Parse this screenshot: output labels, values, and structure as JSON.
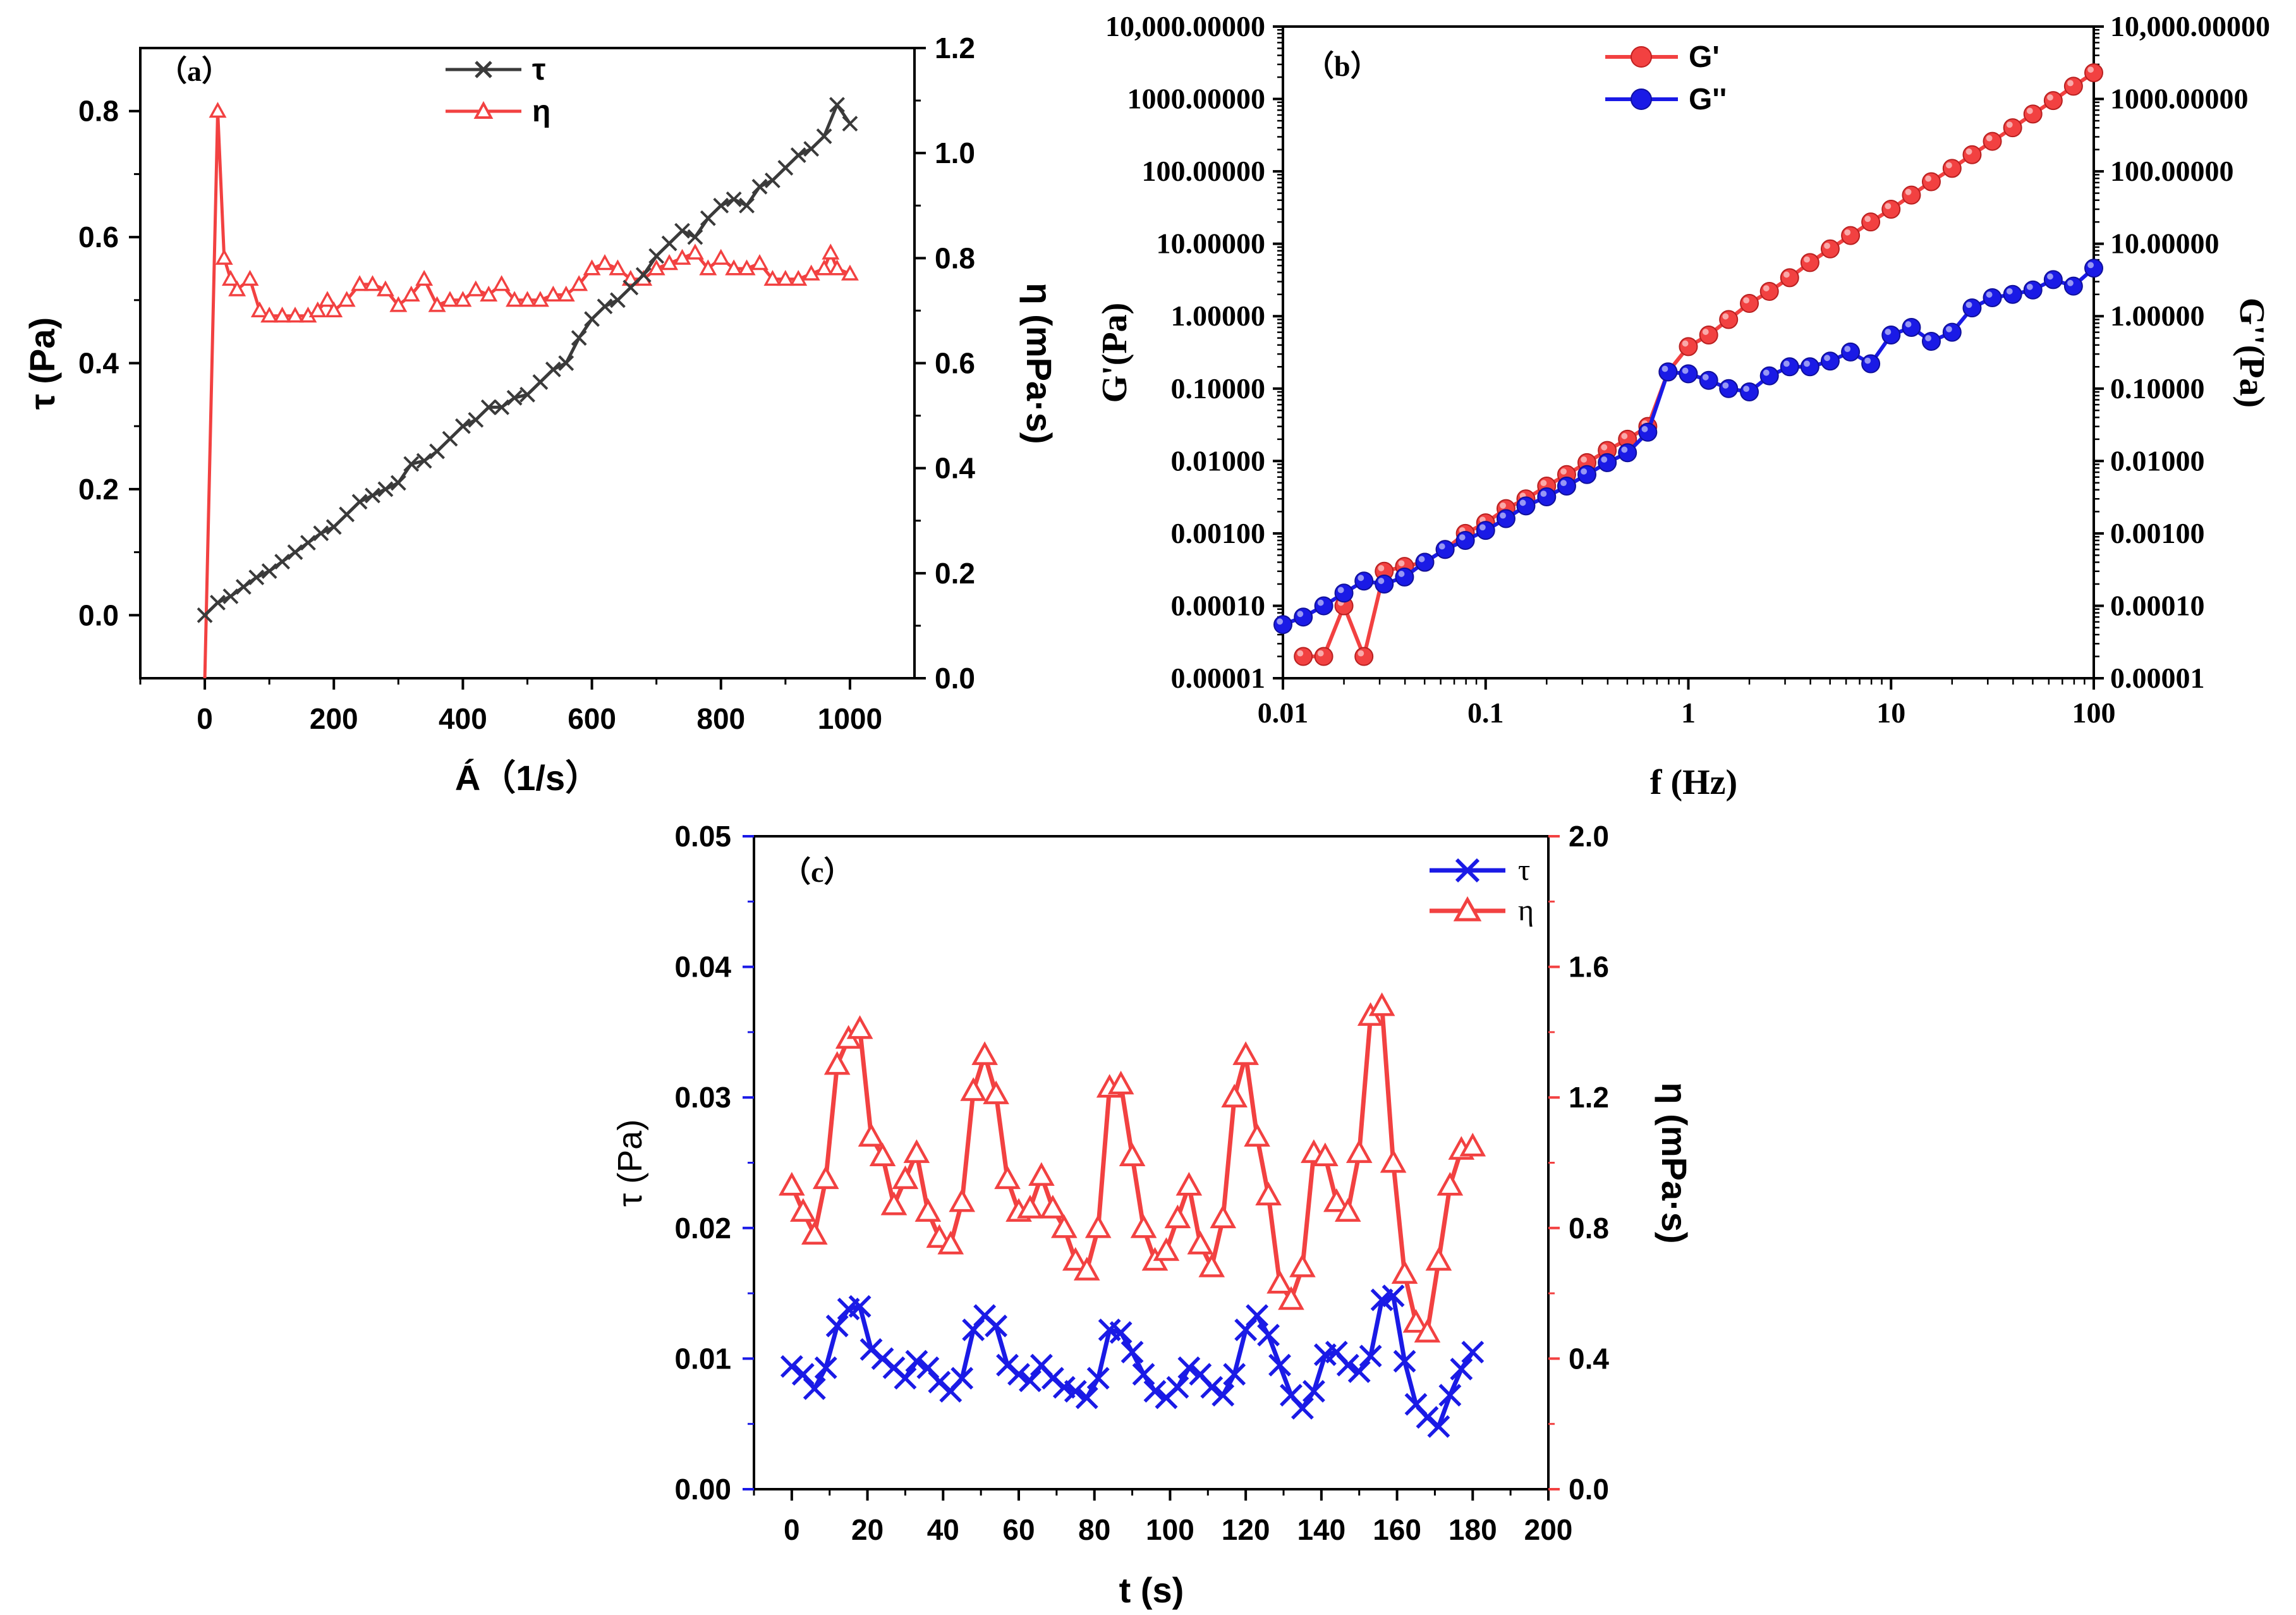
{
  "colors": {
    "black": "#3a3a3a",
    "red": "#f24141",
    "blue": "#1a1ae6",
    "axis": "#000000"
  },
  "chart_data": [
    {
      "panel_label": "（a）",
      "type": "line",
      "xlabel": "Á（1/s）",
      "ylabel_left": "τ (Pa)",
      "ylabel_right": "η (mPa·s)",
      "xlim": [
        -100,
        1100
      ],
      "ylim_left": [
        -0.1,
        0.9
      ],
      "ylim_right": [
        0,
        1.2
      ],
      "xticks": [
        "0",
        "200",
        "400",
        "600",
        "800",
        "1000"
      ],
      "yticks_left": [
        "0.0",
        "0.2",
        "0.4",
        "0.6",
        "0.8"
      ],
      "yticks_right": [
        "0.0",
        "0.2",
        "0.4",
        "0.6",
        "0.8",
        "1.0",
        "1.2"
      ],
      "legend": [
        "τ",
        "η"
      ],
      "series": [
        {
          "name": "τ",
          "axis": "left",
          "marker": "x",
          "x": [
            0,
            20,
            40,
            60,
            80,
            100,
            120,
            140,
            160,
            180,
            200,
            220,
            240,
            260,
            280,
            300,
            320,
            340,
            360,
            380,
            400,
            420,
            440,
            460,
            480,
            500,
            520,
            540,
            560,
            580,
            600,
            620,
            640,
            660,
            680,
            700,
            720,
            740,
            760,
            780,
            800,
            820,
            840,
            860,
            880,
            900,
            920,
            940,
            960,
            980,
            1000
          ],
          "y": [
            0.0,
            0.02,
            0.03,
            0.045,
            0.06,
            0.07,
            0.085,
            0.1,
            0.115,
            0.13,
            0.14,
            0.16,
            0.18,
            0.19,
            0.2,
            0.21,
            0.24,
            0.245,
            0.26,
            0.28,
            0.3,
            0.31,
            0.33,
            0.33,
            0.345,
            0.35,
            0.37,
            0.39,
            0.4,
            0.44,
            0.47,
            0.49,
            0.5,
            0.52,
            0.54,
            0.57,
            0.59,
            0.61,
            0.6,
            0.63,
            0.65,
            0.66,
            0.65,
            0.68,
            0.69,
            0.71,
            0.73,
            0.74,
            0.76,
            0.81,
            0.78
          ]
        },
        {
          "name": "η",
          "axis": "right",
          "marker": "triangle",
          "x": [
            0,
            20,
            30,
            40,
            50,
            70,
            85,
            100,
            120,
            140,
            160,
            175,
            190,
            200,
            220,
            240,
            260,
            280,
            300,
            320,
            340,
            360,
            380,
            400,
            420,
            440,
            460,
            480,
            500,
            520,
            540,
            560,
            580,
            600,
            620,
            640,
            660,
            680,
            700,
            720,
            740,
            760,
            780,
            800,
            820,
            840,
            860,
            880,
            900,
            920,
            940,
            960,
            970,
            980,
            1000
          ],
          "y": [
            0.0,
            1.08,
            0.8,
            0.76,
            0.74,
            0.76,
            0.7,
            0.69,
            0.69,
            0.69,
            0.69,
            0.7,
            0.72,
            0.7,
            0.72,
            0.75,
            0.75,
            0.74,
            0.71,
            0.73,
            0.76,
            0.71,
            0.72,
            0.72,
            0.74,
            0.73,
            0.75,
            0.72,
            0.72,
            0.72,
            0.73,
            0.73,
            0.75,
            0.78,
            0.79,
            0.78,
            0.76,
            0.76,
            0.78,
            0.79,
            0.8,
            0.81,
            0.78,
            0.8,
            0.78,
            0.78,
            0.79,
            0.76,
            0.76,
            0.76,
            0.77,
            0.78,
            0.81,
            0.78,
            0.77
          ]
        }
      ]
    },
    {
      "panel_label": "（b）",
      "type": "line",
      "xscale": "log",
      "yscale": "log",
      "xlabel": "f (Hz)",
      "ylabel_left": "G'(Pa)",
      "ylabel_right": "G''(Pa)",
      "xlim": [
        0.01,
        100
      ],
      "ylim": [
        1e-05,
        10000
      ],
      "xticks": [
        "0.01",
        "0.1",
        "1",
        "10",
        "100"
      ],
      "yticks_left": [
        "0.00001",
        "0.00010",
        "0.00100",
        "0.01000",
        "0.10000",
        "1.00000",
        "10.00000",
        "100.00000",
        "1000.00000",
        "10,000.00000"
      ],
      "yticks_right": [
        "0.00001",
        "0.00010",
        "0.00100",
        "0.01000",
        "0.10000",
        "1.00000",
        "10.00000",
        "100.00000",
        "1000.00000",
        "10,000.00000"
      ],
      "legend": [
        "G'",
        "G''"
      ],
      "series": [
        {
          "name": "G'",
          "marker": "sphere",
          "x": [
            0.0126,
            0.0159,
            0.02,
            0.0251,
            0.0316,
            0.0398,
            0.0501,
            0.0631,
            0.0794,
            0.1,
            0.126,
            0.158,
            0.2,
            0.251,
            0.316,
            0.398,
            0.501,
            0.631,
            0.794,
            1.0,
            1.26,
            1.58,
            2.0,
            2.51,
            3.16,
            3.98,
            5.01,
            6.31,
            7.94,
            10.0,
            12.6,
            15.8,
            20.0,
            25.1,
            31.6,
            39.8,
            50.1,
            63.1,
            79.4,
            100
          ],
          "y": [
            2e-05,
            2e-05,
            0.0001,
            2e-05,
            0.0003,
            0.00035,
            0.0004,
            0.0006,
            0.001,
            0.0014,
            0.0022,
            0.003,
            0.0045,
            0.0065,
            0.0095,
            0.014,
            0.02,
            0.03,
            0.17,
            0.38,
            0.55,
            0.9,
            1.5,
            2.2,
            3.4,
            5.5,
            8.5,
            13,
            20,
            30,
            47,
            72,
            110,
            170,
            260,
            400,
            620,
            950,
            1500,
            2300
          ]
        },
        {
          "name": "G''",
          "marker": "sphere",
          "x": [
            0.01,
            0.0126,
            0.0159,
            0.02,
            0.0251,
            0.0316,
            0.0398,
            0.0501,
            0.0631,
            0.0794,
            0.1,
            0.126,
            0.158,
            0.2,
            0.251,
            0.316,
            0.398,
            0.501,
            0.631,
            0.794,
            1.0,
            1.26,
            1.58,
            2.0,
            2.51,
            3.16,
            3.98,
            5.01,
            6.31,
            7.94,
            10.0,
            12.6,
            15.8,
            20.0,
            25.1,
            31.6,
            39.8,
            50.1,
            63.1,
            79.4,
            100
          ],
          "y": [
            5.5e-05,
            7e-05,
            0.0001,
            0.00015,
            0.00022,
            0.0002,
            0.00025,
            0.0004,
            0.0006,
            0.0008,
            0.0011,
            0.0016,
            0.0024,
            0.0032,
            0.0045,
            0.0065,
            0.0095,
            0.013,
            0.025,
            0.17,
            0.16,
            0.13,
            0.1,
            0.09,
            0.15,
            0.2,
            0.2,
            0.24,
            0.32,
            0.22,
            0.55,
            0.7,
            0.45,
            0.6,
            1.3,
            1.8,
            2.0,
            2.3,
            3.2,
            2.6,
            4.6
          ]
        }
      ]
    },
    {
      "panel_label": "（c）",
      "type": "line",
      "xlabel": "t (s)",
      "ylabel_left": "τ (Pa)",
      "ylabel_right": "η (mPa·s)",
      "xlim": [
        -10,
        200
      ],
      "ylim_left": [
        0,
        0.05
      ],
      "ylim_right": [
        0,
        2.0
      ],
      "xticks": [
        "0",
        "20",
        "40",
        "60",
        "80",
        "100",
        "120",
        "140",
        "160",
        "180",
        "200"
      ],
      "yticks_left": [
        "0.00",
        "0.01",
        "0.02",
        "0.03",
        "0.04",
        "0.05"
      ],
      "yticks_right": [
        "0.0",
        "0.4",
        "0.8",
        "1.2",
        "1.6",
        "2.0"
      ],
      "legend": [
        "τ",
        "η"
      ],
      "series": [
        {
          "name": "τ",
          "axis": "left",
          "marker": "x",
          "x": [
            0,
            3,
            6,
            9,
            12,
            15,
            18,
            21,
            24,
            27,
            30,
            33,
            36,
            39,
            42,
            45,
            48,
            51,
            54,
            57,
            60,
            63,
            66,
            69,
            72,
            75,
            78,
            81,
            84,
            87,
            90,
            93,
            96,
            99,
            102,
            105,
            108,
            111,
            114,
            117,
            120,
            123,
            126,
            129,
            132,
            135,
            138,
            141,
            144,
            147,
            150,
            153,
            156,
            159,
            162,
            165,
            168,
            171,
            174,
            177,
            180
          ],
          "y": [
            0.0094,
            0.0088,
            0.0077,
            0.0093,
            0.0125,
            0.0138,
            0.014,
            0.0107,
            0.01,
            0.0093,
            0.0085,
            0.0098,
            0.0093,
            0.0082,
            0.0075,
            0.0085,
            0.0122,
            0.0133,
            0.0125,
            0.0095,
            0.0088,
            0.0083,
            0.0095,
            0.0085,
            0.0078,
            0.0075,
            0.007,
            0.0085,
            0.0122,
            0.012,
            0.0105,
            0.0088,
            0.0075,
            0.007,
            0.0078,
            0.0093,
            0.0088,
            0.0078,
            0.0072,
            0.0088,
            0.0122,
            0.0133,
            0.0118,
            0.0095,
            0.0072,
            0.0062,
            0.0075,
            0.0103,
            0.0105,
            0.0095,
            0.009,
            0.0102,
            0.0145,
            0.0148,
            0.0098,
            0.0065,
            0.0055,
            0.0048,
            0.0072,
            0.0092,
            0.0105
          ]
        },
        {
          "name": "η",
          "axis": "right",
          "marker": "triangle",
          "x": [
            0,
            3,
            6,
            9,
            12,
            15,
            18,
            21,
            24,
            27,
            30,
            33,
            36,
            39,
            42,
            45,
            48,
            51,
            54,
            57,
            60,
            63,
            66,
            69,
            72,
            75,
            78,
            81,
            84,
            87,
            90,
            93,
            96,
            99,
            102,
            105,
            108,
            111,
            114,
            117,
            120,
            123,
            126,
            129,
            132,
            135,
            138,
            141,
            144,
            147,
            150,
            153,
            156,
            159,
            162,
            165,
            168,
            171,
            174,
            177,
            180
          ],
          "y": [
            0.93,
            0.85,
            0.78,
            0.95,
            1.3,
            1.38,
            1.41,
            1.08,
            1.02,
            0.87,
            0.95,
            1.03,
            0.85,
            0.77,
            0.75,
            0.88,
            1.22,
            1.33,
            1.21,
            0.95,
            0.85,
            0.86,
            0.96,
            0.86,
            0.8,
            0.7,
            0.67,
            0.8,
            1.23,
            1.24,
            1.02,
            0.8,
            0.7,
            0.73,
            0.83,
            0.93,
            0.75,
            0.68,
            0.83,
            1.2,
            1.33,
            1.08,
            0.9,
            0.63,
            0.58,
            0.68,
            1.03,
            1.02,
            0.88,
            0.85,
            1.03,
            1.45,
            1.48,
            1.0,
            0.66,
            0.51,
            0.48,
            0.7,
            0.93,
            1.04,
            1.05
          ]
        }
      ]
    }
  ]
}
